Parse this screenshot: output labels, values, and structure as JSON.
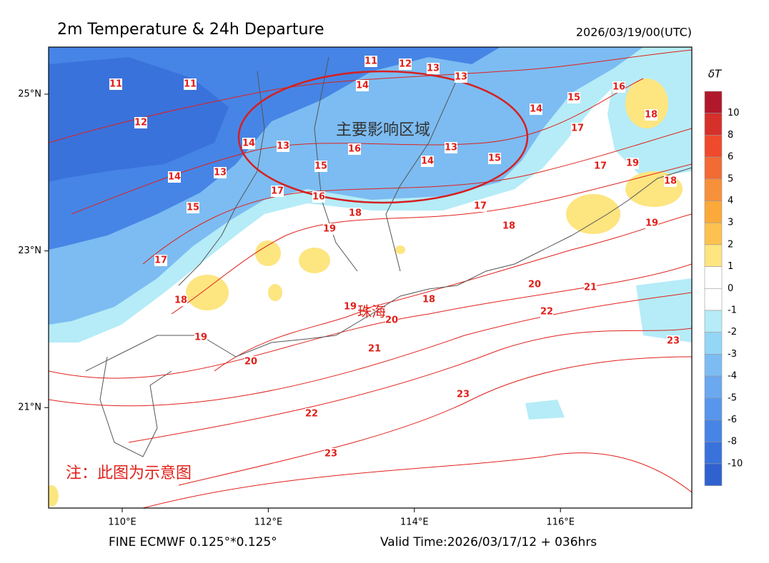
{
  "header": {
    "title": "2m Temperature & 24h Departure",
    "datetime": "2026/03/19/00(UTC)"
  },
  "map": {
    "lon_ticks": [
      {
        "value": 110,
        "label": "110°E"
      },
      {
        "value": 112,
        "label": "112°E"
      },
      {
        "value": 114,
        "label": "114°E"
      },
      {
        "value": 116,
        "label": "116°E"
      }
    ],
    "lat_ticks": [
      {
        "value": 25,
        "label": "25°N"
      },
      {
        "value": 23,
        "label": "23°N"
      },
      {
        "value": 21,
        "label": "21°N"
      }
    ],
    "contour_labels": [
      11,
      11,
      12,
      14,
      13,
      15,
      17,
      18,
      19,
      14,
      13,
      17,
      16,
      15,
      16,
      18,
      19,
      14,
      11,
      12,
      13,
      13,
      13,
      14,
      15,
      17,
      18,
      17,
      15,
      14,
      16,
      18,
      19,
      18,
      19,
      17,
      20,
      21,
      22,
      23,
      21,
      20,
      19,
      18,
      22,
      23,
      23,
      20
    ],
    "annotations": {
      "region": "主要影响区域",
      "city": "珠海",
      "note": "注：此图为示意图"
    }
  },
  "colorbar": {
    "title": "δT",
    "labels": [
      10,
      8,
      6,
      5,
      4,
      3,
      2,
      1,
      0,
      -1,
      -2,
      -3,
      -4,
      -5,
      -6,
      -8,
      -10
    ],
    "colors": [
      "#b2182b",
      "#d6302a",
      "#ef4a2c",
      "#f26b35",
      "#f7903b",
      "#fba93a",
      "#fdc14f",
      "#fde580",
      "#ffffff",
      "#ffffff",
      "#b5ecf7",
      "#93d6f5",
      "#7cbcf2",
      "#6aa8ef",
      "#5796ec",
      "#4685e6",
      "#3a72dc",
      "#2f62cf"
    ]
  },
  "footer": {
    "model": "FINE ECMWF 0.125°*0.125°",
    "valid_time": "Valid Time:2026/03/17/12 + 036hrs"
  }
}
